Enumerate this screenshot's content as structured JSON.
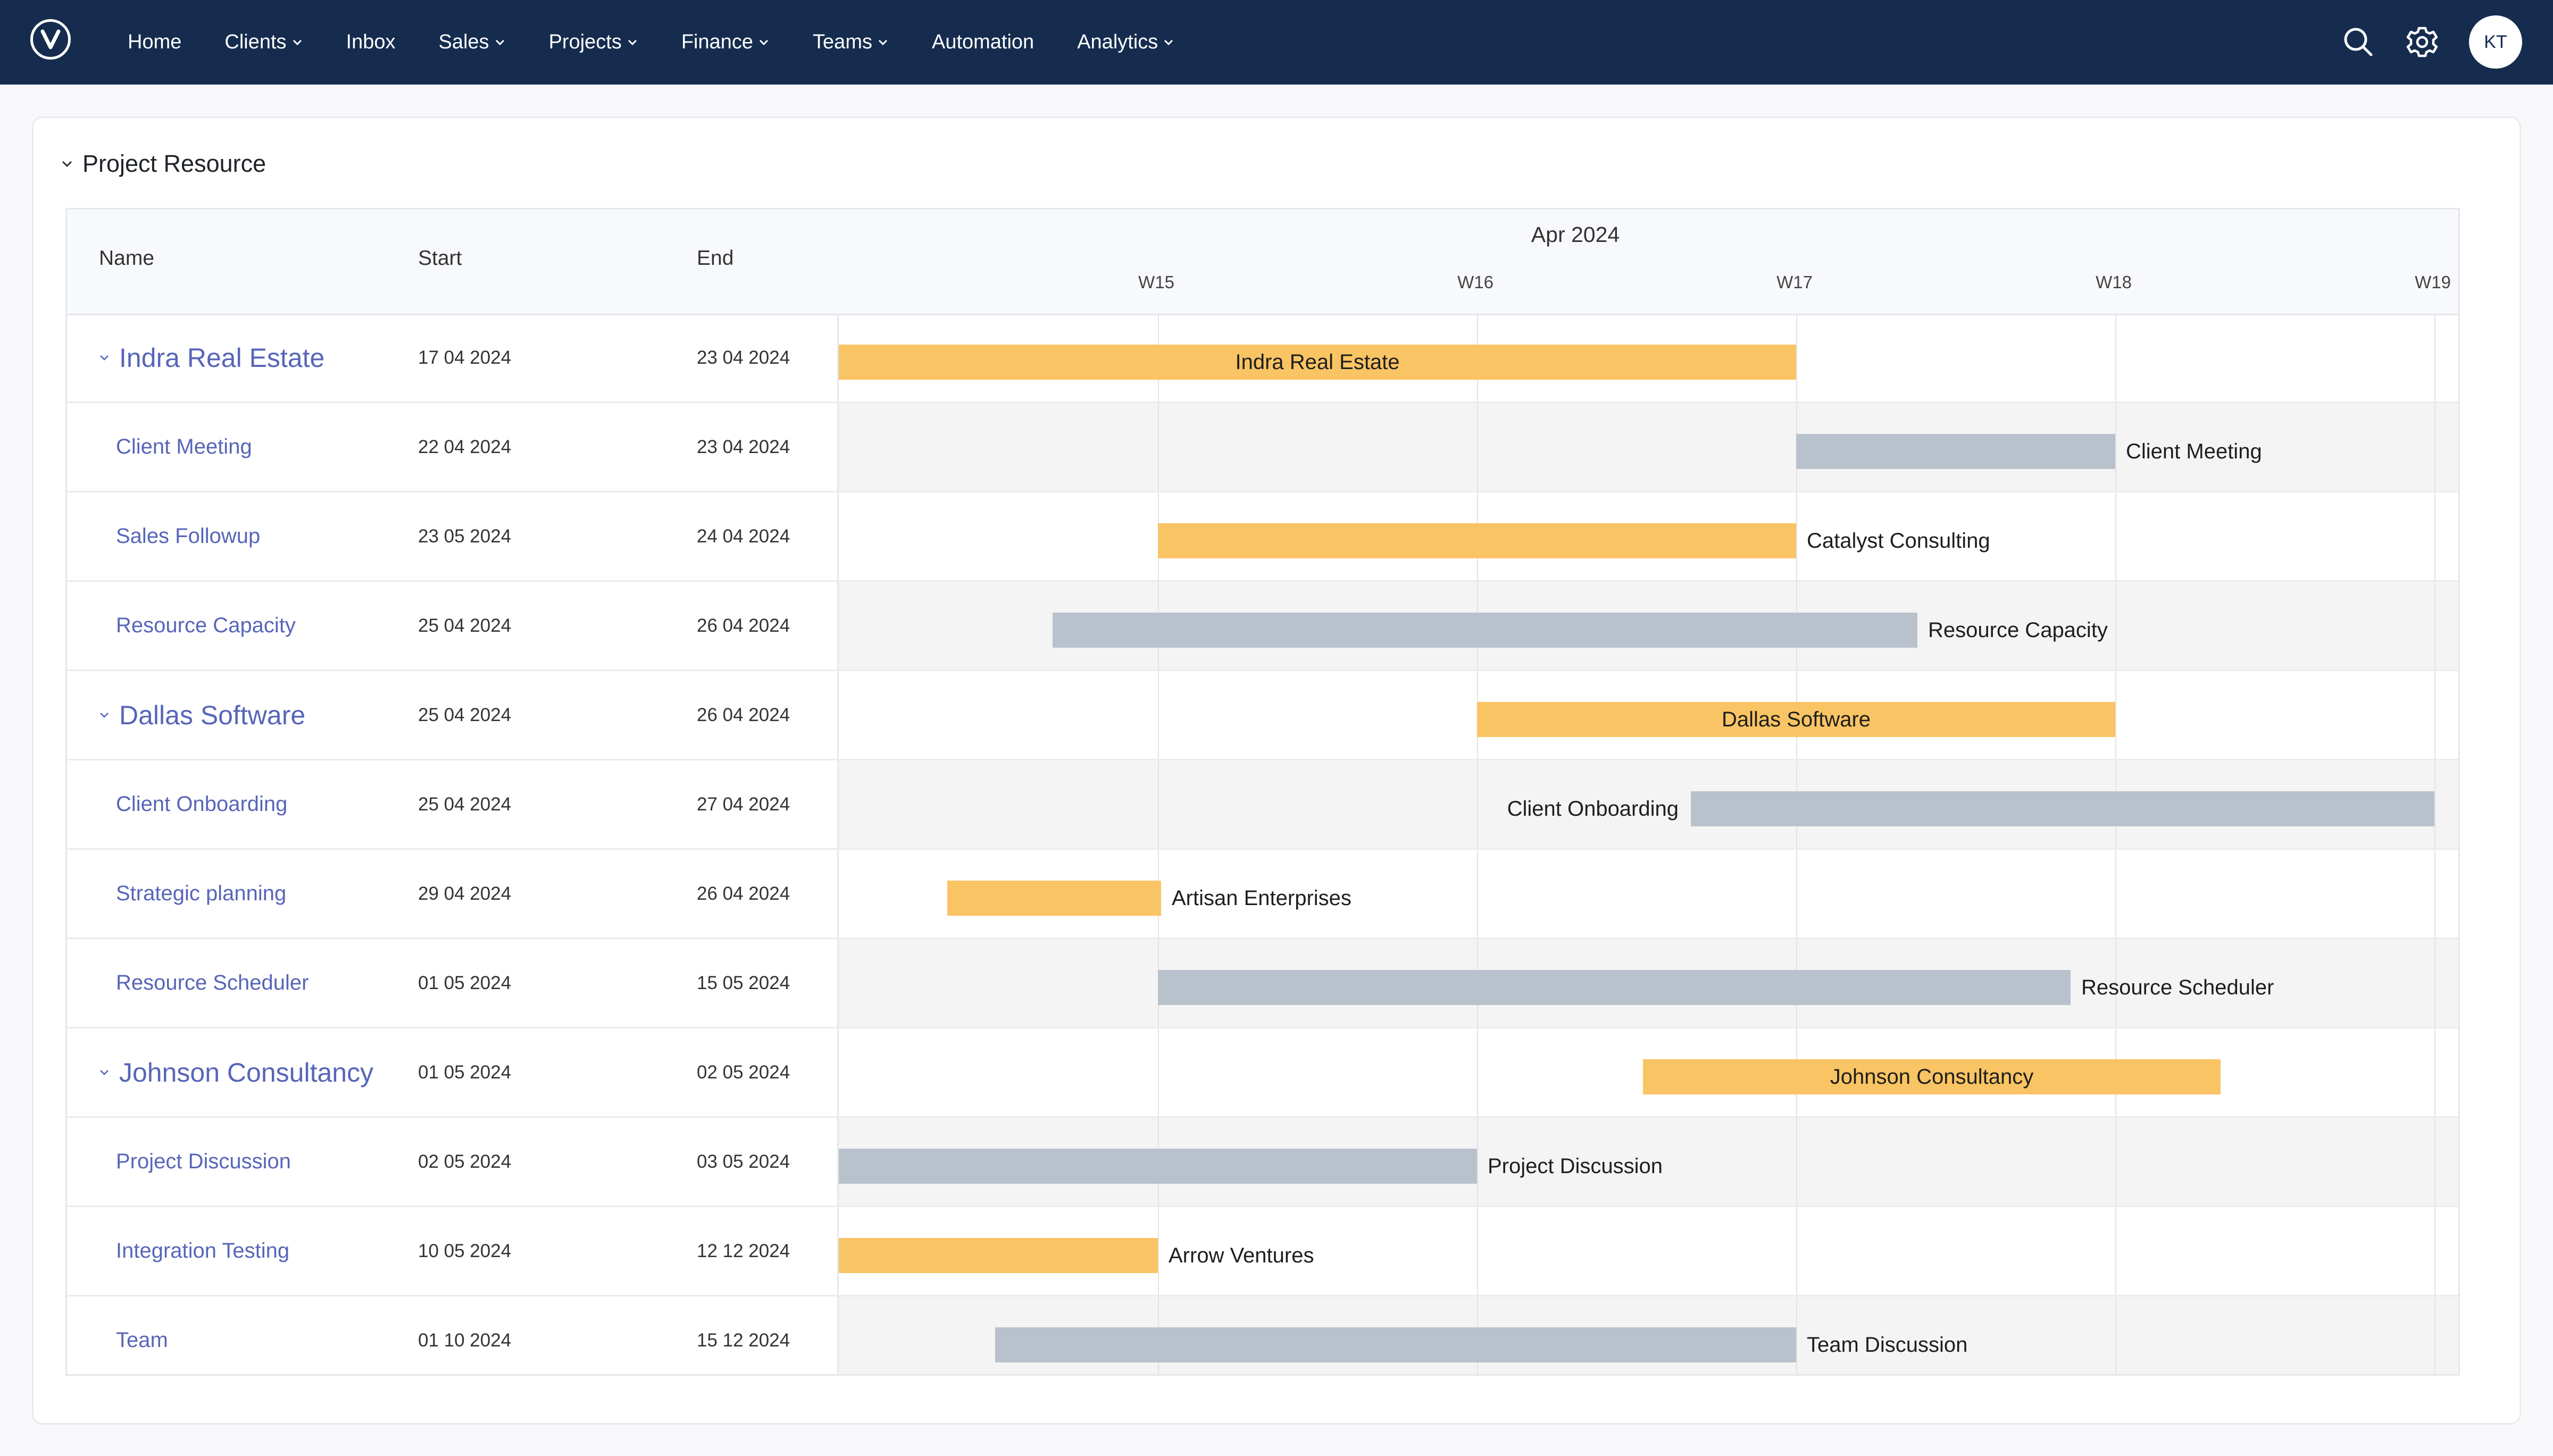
{
  "nav": {
    "items": [
      {
        "label": "Home",
        "dropdown": false
      },
      {
        "label": "Clients",
        "dropdown": true
      },
      {
        "label": "Inbox",
        "dropdown": false
      },
      {
        "label": "Sales",
        "dropdown": true
      },
      {
        "label": "Projects",
        "dropdown": true
      },
      {
        "label": "Finance",
        "dropdown": true
      },
      {
        "label": "Teams",
        "dropdown": true
      },
      {
        "label": "Automation",
        "dropdown": false
      },
      {
        "label": "Analytics",
        "dropdown": true
      }
    ],
    "avatar_initials": "KT",
    "icons": [
      "logo-icon",
      "search-icon",
      "gear-icon"
    ]
  },
  "card": {
    "title": "Project Resource"
  },
  "gantt": {
    "columns": {
      "name": "Name",
      "start": "Start",
      "end": "End"
    },
    "month": "Apr 2024",
    "weeks": [
      "W15",
      "W16",
      "W17",
      "W18",
      "W19"
    ],
    "rows": [
      {
        "name": "Indra Real Estate",
        "start": "17 04 2024",
        "end": "23 04 2024",
        "parent": true,
        "color": "gold",
        "bar_start": 0.0,
        "bar_end": 3.0,
        "label": "Indra Real Estate",
        "label_pos": "inside"
      },
      {
        "name": "Client Meeting",
        "start": "22 04 2024",
        "end": "23 04 2024",
        "parent": false,
        "color": "grey",
        "bar_start": 3.0,
        "bar_end": 4.0,
        "label": "Client Meeting",
        "label_pos": "right"
      },
      {
        "name": "Sales Followup",
        "start": "23 05 2024",
        "end": "24 04 2024",
        "parent": false,
        "color": "gold",
        "bar_start": 1.0,
        "bar_end": 3.0,
        "label": "Catalyst Consulting",
        "label_pos": "right"
      },
      {
        "name": "Resource Capacity",
        "start": "25 04 2024",
        "end": "26 04 2024",
        "parent": false,
        "color": "grey",
        "bar_start": 0.67,
        "bar_end": 3.38,
        "label": "Resource Capacity",
        "label_pos": "right"
      },
      {
        "name": "Dallas Software",
        "start": "25 04 2024",
        "end": "26 04 2024",
        "parent": true,
        "color": "gold",
        "bar_start": 2.0,
        "bar_end": 4.0,
        "label": "Dallas Software",
        "label_pos": "inside"
      },
      {
        "name": "Client Onboarding",
        "start": "25 04 2024",
        "end": "27 04 2024",
        "parent": false,
        "color": "grey",
        "bar_start": 2.67,
        "bar_end": 5.0,
        "label": "Client Onboarding",
        "label_pos": "left"
      },
      {
        "name": "Strategic planning",
        "start": "29 04 2024",
        "end": "26 04 2024",
        "parent": false,
        "color": "gold",
        "bar_start": 0.34,
        "bar_end": 1.01,
        "label": "Artisan Enterprises",
        "label_pos": "right"
      },
      {
        "name": "Resource Scheduler",
        "start": "01 05 2024",
        "end": "15 05 2024",
        "parent": false,
        "color": "grey",
        "bar_start": 1.0,
        "bar_end": 3.86,
        "label": "Resource Scheduler",
        "label_pos": "right"
      },
      {
        "name": "Johnson Consultancy",
        "start": "01 05 2024",
        "end": "02 05 2024",
        "parent": true,
        "color": "gold",
        "bar_start": 2.52,
        "bar_end": 4.33,
        "label": "Johnson Consultancy",
        "label_pos": "inside"
      },
      {
        "name": "Project Discussion",
        "start": "02 05 2024",
        "end": "03 05 2024",
        "parent": false,
        "color": "grey",
        "bar_start": 0.0,
        "bar_end": 2.0,
        "label": "Project Discussion",
        "label_pos": "right"
      },
      {
        "name": "Integration Testing",
        "start": "10 05 2024",
        "end": "12 12 2024",
        "parent": false,
        "color": "gold",
        "bar_start": 0.0,
        "bar_end": 1.0,
        "label": "Arrow Ventures",
        "label_pos": "right"
      },
      {
        "name": "Team",
        "start": "01 10 2024",
        "end": "15 12 2024",
        "parent": false,
        "color": "grey",
        "bar_start": 0.49,
        "bar_end": 3.0,
        "label": "Team Discussion",
        "label_pos": "right"
      }
    ]
  }
}
